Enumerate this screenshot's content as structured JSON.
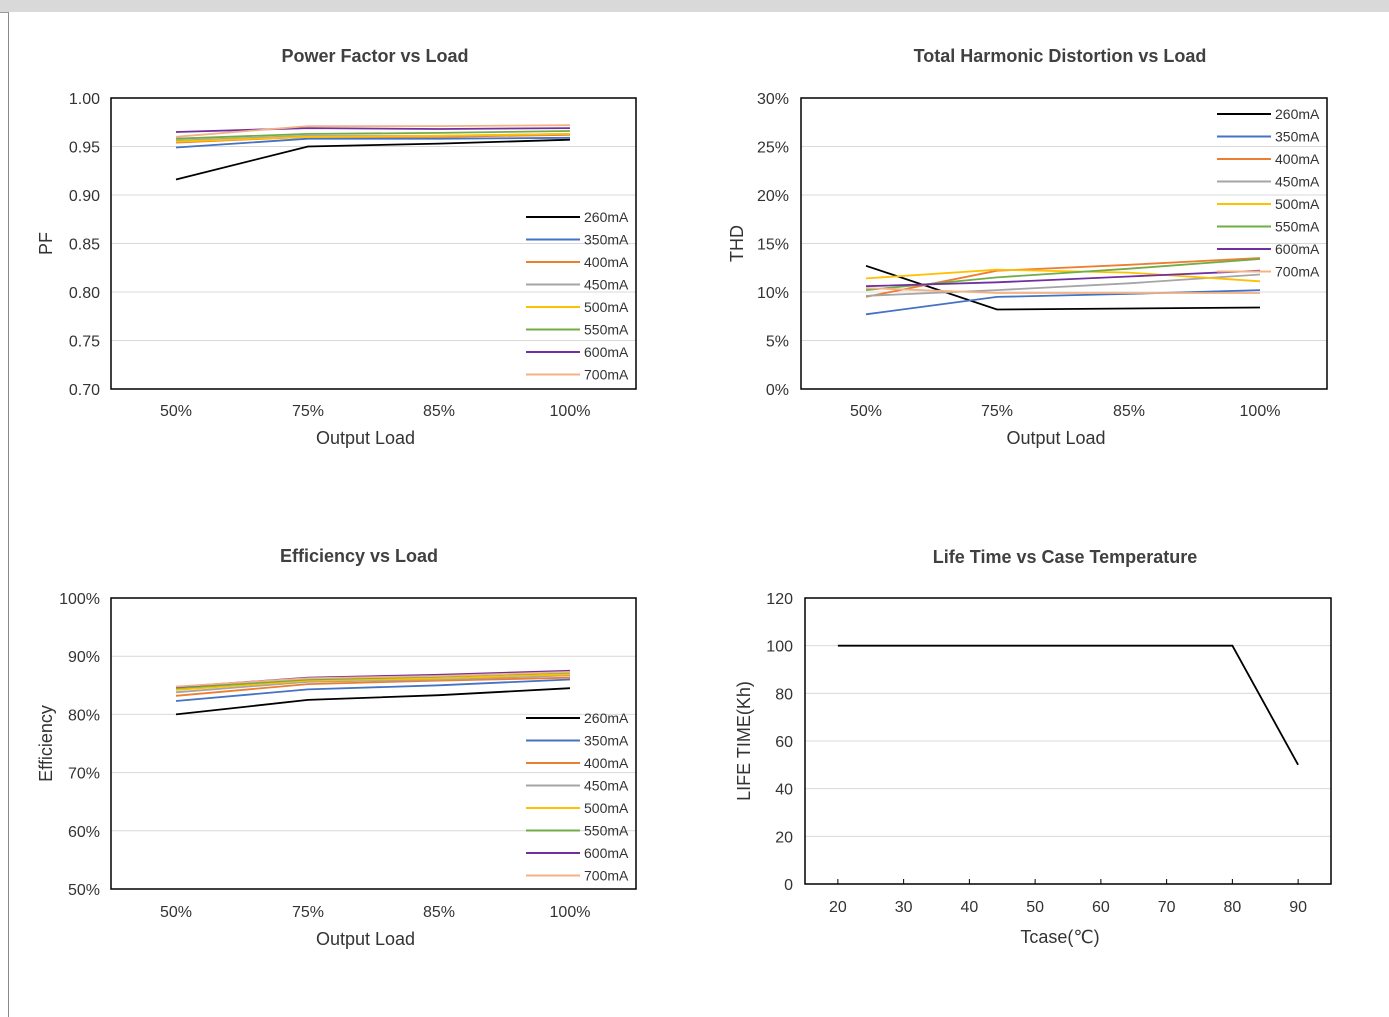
{
  "charts": [
    {
      "type": "line",
      "title": "Power Factor vs Load",
      "xlabel": "Output Load",
      "ylabel": "PF",
      "categories": [
        "50%",
        "75%",
        "85%",
        "100%"
      ],
      "ylim": [
        0.7,
        1.0
      ],
      "yticks": [
        "1.00",
        "0.95",
        "0.90",
        "0.85",
        "0.80",
        "0.75",
        "0.70"
      ],
      "ytick_values": [
        1.0,
        0.95,
        0.9,
        0.85,
        0.8,
        0.75,
        0.7
      ],
      "grid": "horizontal",
      "legend_position": "bottom-right",
      "series": [
        {
          "name": "260mA",
          "color": "#000000",
          "values": [
            0.916,
            0.95,
            0.953,
            0.957
          ]
        },
        {
          "name": "350mA",
          "color": "#4472c4",
          "values": [
            0.949,
            0.958,
            0.958,
            0.959
          ]
        },
        {
          "name": "400mA",
          "color": "#ed7d31",
          "values": [
            0.954,
            0.96,
            0.96,
            0.962
          ]
        },
        {
          "name": "450mA",
          "color": "#a5a5a5",
          "values": [
            0.956,
            0.961,
            0.961,
            0.963
          ]
        },
        {
          "name": "500mA",
          "color": "#ffc000",
          "values": [
            0.955,
            0.96,
            0.961,
            0.963
          ]
        },
        {
          "name": "550mA",
          "color": "#70ad47",
          "values": [
            0.958,
            0.963,
            0.964,
            0.966
          ]
        },
        {
          "name": "600mA",
          "color": "#7030a0",
          "values": [
            0.965,
            0.969,
            0.968,
            0.969
          ]
        },
        {
          "name": "700mA",
          "color": "#f4b183",
          "values": [
            0.96,
            0.971,
            0.971,
            0.972
          ]
        }
      ]
    },
    {
      "type": "line",
      "title": "Total Harmonic Distortion vs Load",
      "xlabel": "",
      "xlabel_printed": "Output Load",
      "ylabel": "THD",
      "categories": [
        "50%",
        "75%",
        "85%",
        "100%"
      ],
      "ylim": [
        0,
        30
      ],
      "yticks": [
        "30%",
        "25%",
        "20%",
        "15%",
        "10%",
        "5%",
        "0%"
      ],
      "ytick_values": [
        30,
        25,
        20,
        15,
        10,
        5,
        0
      ],
      "grid": "horizontal",
      "legend_position": "top-right",
      "series": [
        {
          "name": "260mA",
          "color": "#000000",
          "values": [
            12.7,
            8.2,
            8.3,
            8.4
          ]
        },
        {
          "name": "350mA",
          "color": "#4472c4",
          "values": [
            7.7,
            9.5,
            9.8,
            10.2
          ]
        },
        {
          "name": "400mA",
          "color": "#ed7d31",
          "values": [
            9.5,
            12.2,
            12.8,
            13.5
          ]
        },
        {
          "name": "450mA",
          "color": "#a5a5a5",
          "values": [
            9.6,
            10.2,
            10.9,
            11.8
          ]
        },
        {
          "name": "500mA",
          "color": "#ffc000",
          "values": [
            11.4,
            12.3,
            12.0,
            11.1
          ]
        },
        {
          "name": "550mA",
          "color": "#70ad47",
          "values": [
            10.2,
            11.5,
            12.4,
            13.4
          ]
        },
        {
          "name": "600mA",
          "color": "#7030a0",
          "values": [
            10.6,
            11.0,
            11.6,
            12.2
          ]
        },
        {
          "name": "700mA",
          "color": "#f4b183",
          "values": [
            10.4,
            9.9,
            9.9,
            9.9
          ]
        }
      ]
    },
    {
      "type": "line",
      "title": "Efficiency vs Load",
      "xlabel": "Output Load",
      "ylabel": "Efficiency",
      "categories": [
        "50%",
        "75%",
        "85%",
        "100%"
      ],
      "ylim": [
        50,
        100
      ],
      "yticks": [
        "100%",
        "90%",
        "80%",
        "70%",
        "60%",
        "50%"
      ],
      "ytick_values": [
        100,
        90,
        80,
        70,
        60,
        50
      ],
      "grid": "horizontal",
      "legend_position": "bottom-right",
      "series": [
        {
          "name": "260mA",
          "color": "#000000",
          "values": [
            80.0,
            82.5,
            83.3,
            84.5
          ]
        },
        {
          "name": "350mA",
          "color": "#4472c4",
          "values": [
            82.3,
            84.3,
            85.0,
            86.0
          ]
        },
        {
          "name": "400mA",
          "color": "#ed7d31",
          "values": [
            83.2,
            85.2,
            85.8,
            86.3
          ]
        },
        {
          "name": "450mA",
          "color": "#a5a5a5",
          "values": [
            83.8,
            85.6,
            86.0,
            86.7
          ]
        },
        {
          "name": "500mA",
          "color": "#ffc000",
          "values": [
            84.2,
            85.8,
            86.2,
            86.9
          ]
        },
        {
          "name": "550mA",
          "color": "#70ad47",
          "values": [
            84.5,
            86.0,
            86.5,
            87.2
          ]
        },
        {
          "name": "600mA",
          "color": "#7030a0",
          "values": [
            84.7,
            86.3,
            86.8,
            87.5
          ]
        },
        {
          "name": "700mA",
          "color": "#f4b183",
          "values": [
            84.8,
            86.2,
            86.6,
            87.3
          ]
        }
      ]
    },
    {
      "type": "line",
      "title": "Life Time vs Case Temperature",
      "xlabel": "Tcase(℃)",
      "ylabel": "LIFE TIME(Kh)",
      "categories": [
        "20",
        "30",
        "40",
        "50",
        "60",
        "70",
        "80",
        "90"
      ],
      "ylim": [
        0,
        120
      ],
      "yticks": [
        "120",
        "100",
        "80",
        "60",
        "40",
        "20",
        "0"
      ],
      "ytick_values": [
        120,
        100,
        80,
        60,
        40,
        20,
        0
      ],
      "grid": "horizontal",
      "legend_position": "none",
      "x": [
        20,
        80,
        90
      ],
      "series": [
        {
          "color": "#000000",
          "values": [
            100,
            100,
            50
          ]
        }
      ]
    }
  ]
}
